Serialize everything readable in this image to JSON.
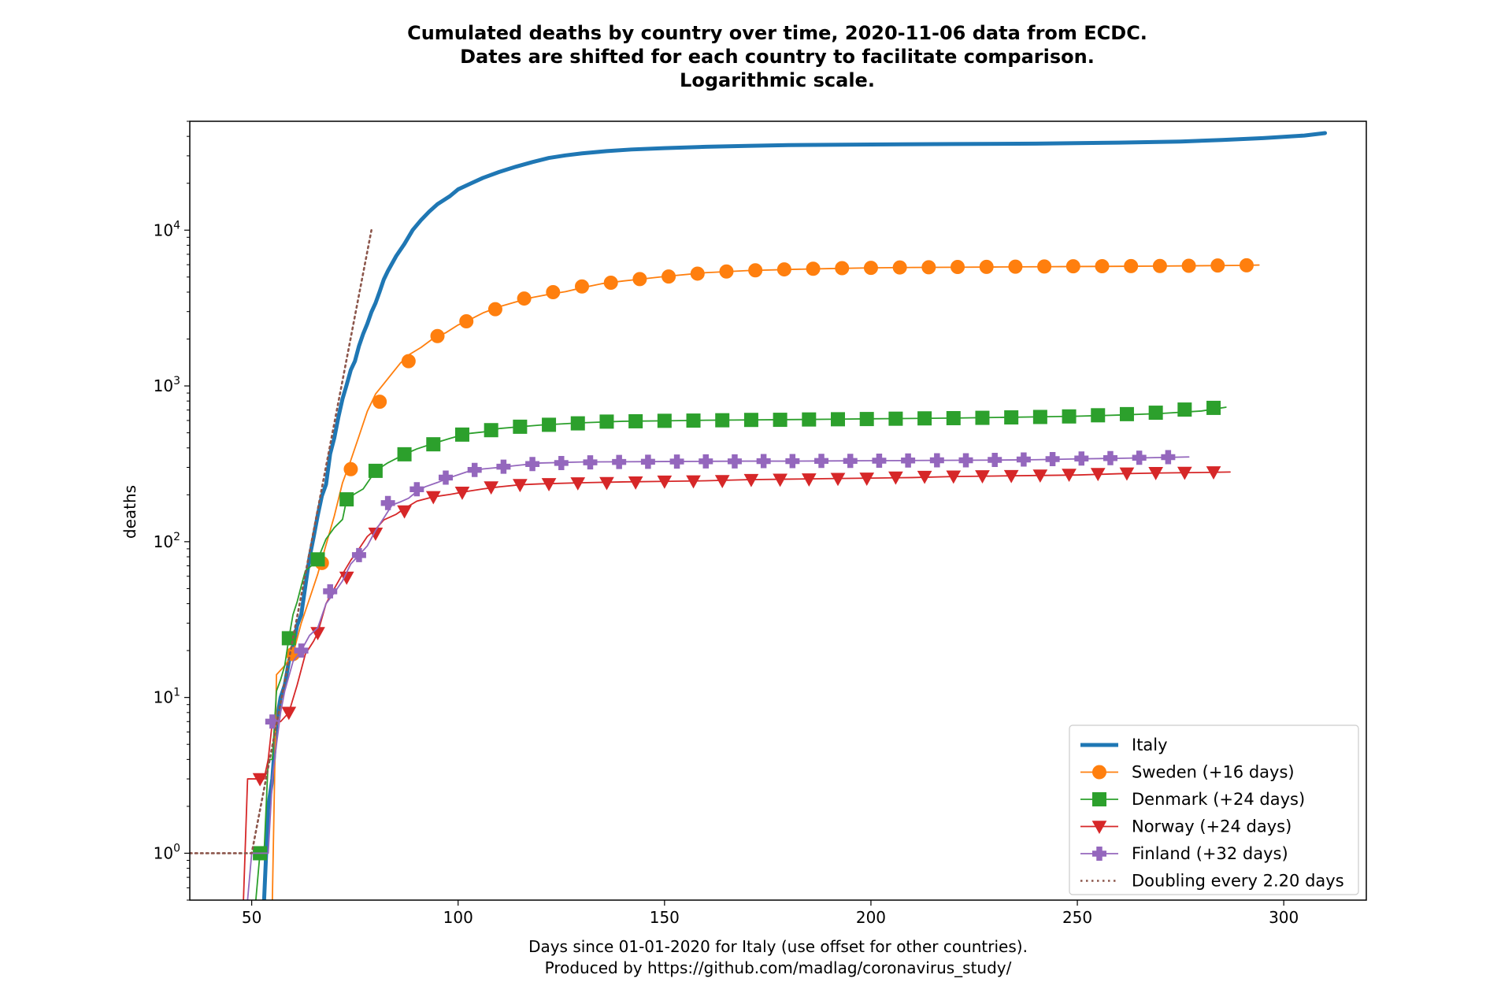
{
  "chart_data": {
    "type": "line",
    "title_lines": [
      "Cumulated deaths by country over time, 2020-11-06 data from ECDC.",
      "Dates are shifted for each country to facilitate comparison.",
      "Logarithmic scale."
    ],
    "xlabel_lines": [
      "Days since 01-01-2020 for Italy (use offset for other countries).",
      "Produced by https://github.com/madlag/coronavirus_study/"
    ],
    "ylabel": "deaths",
    "y_scale": "log",
    "xlim": [
      35,
      320
    ],
    "ylim": [
      0.5,
      50000
    ],
    "x_ticks": [
      50,
      100,
      150,
      200,
      250,
      300
    ],
    "y_ticks": [
      {
        "value": 1,
        "base": "10",
        "exp": "0"
      },
      {
        "value": 10,
        "base": "10",
        "exp": "1"
      },
      {
        "value": 100,
        "base": "10",
        "exp": "2"
      },
      {
        "value": 1000,
        "base": "10",
        "exp": "3"
      },
      {
        "value": 10000,
        "base": "10",
        "exp": "4"
      }
    ],
    "legend_position": "lower right",
    "series": [
      {
        "name": "Italy",
        "color": "#1f77b4",
        "marker": "none",
        "linewidth": "thick",
        "x": [
          53,
          54,
          55,
          56,
          57,
          58,
          59,
          60,
          61,
          62,
          63,
          64,
          65,
          66,
          67,
          68,
          69,
          70,
          71,
          72,
          73,
          74,
          75,
          76,
          77,
          78,
          79,
          80,
          81,
          82,
          83,
          85,
          87,
          89,
          91,
          93,
          95,
          98,
          100,
          103,
          106,
          110,
          114,
          118,
          122,
          126,
          130,
          136,
          142,
          150,
          160,
          170,
          180,
          200,
          220,
          240,
          260,
          275,
          285,
          295,
          305,
          310
        ],
        "y": [
          0.5,
          2,
          3,
          7,
          10,
          12,
          17,
          21,
          29,
          34,
          52,
          79,
          107,
          148,
          197,
          233,
          366,
          463,
          631,
          827,
          1016,
          1266,
          1441,
          1809,
          2158,
          2503,
          2978,
          3405,
          4032,
          4825,
          5476,
          6820,
          8165,
          10023,
          11591,
          13155,
          14681,
          16523,
          18279,
          19899,
          21645,
          23660,
          25549,
          27359,
          29079,
          30201,
          31106,
          32169,
          32955,
          33601,
          34301,
          34767,
          35141,
          35473,
          35738,
          35941,
          36474,
          37059,
          37905,
          39000,
          40500,
          42000
        ]
      },
      {
        "name": "Sweden (+16 days)",
        "color": "#ff7f0e",
        "marker": "circle",
        "linewidth": "thin",
        "x": [
          55,
          56,
          58,
          60,
          62,
          64,
          66,
          67,
          70,
          72,
          74,
          76,
          78,
          80,
          82,
          84,
          86,
          88,
          91,
          94,
          97,
          100,
          103,
          106,
          110,
          114,
          118,
          122,
          126,
          130,
          135,
          140,
          145,
          150,
          160,
          170,
          180,
          190,
          200,
          210,
          220,
          230,
          240,
          250,
          260,
          270,
          280,
          290,
          294
        ],
        "y": [
          0.5,
          14,
          16,
          19,
          30,
          43,
          62,
          77,
          146,
          239,
          333,
          477,
          687,
          887,
          1033,
          1203,
          1400,
          1580,
          1765,
          2021,
          2194,
          2462,
          2679,
          2941,
          3225,
          3460,
          3698,
          3871,
          4029,
          4266,
          4542,
          4717,
          4874,
          5041,
          5333,
          5500,
          5593,
          5667,
          5730,
          5763,
          5780,
          5800,
          5820,
          5840,
          5860,
          5880,
          5910,
          5938,
          5969
        ],
        "marker_x": [
          60,
          67,
          74,
          81,
          88,
          95,
          102,
          109,
          116,
          123,
          130,
          137,
          144,
          151,
          158,
          165,
          172,
          179,
          186,
          193,
          200,
          207,
          214,
          221,
          228,
          235,
          242,
          249,
          256,
          263,
          270,
          277,
          284,
          291
        ],
        "marker_y": [
          19,
          73,
          292,
          792,
          1441,
          2090,
          2600,
          3110,
          3640,
          4000,
          4350,
          4600,
          4850,
          5040,
          5260,
          5430,
          5520,
          5600,
          5650,
          5700,
          5730,
          5760,
          5780,
          5800,
          5815,
          5830,
          5845,
          5860,
          5870,
          5880,
          5890,
          5905,
          5930,
          5950
        ]
      },
      {
        "name": "Denmark (+24 days)",
        "color": "#2ca02c",
        "marker": "square",
        "linewidth": "thin",
        "x": [
          51,
          52,
          53,
          54,
          55,
          56,
          57,
          58,
          59,
          60,
          61,
          62,
          63,
          65,
          66,
          68,
          70,
          72,
          73,
          75,
          77,
          80,
          83,
          87,
          90,
          94,
          98,
          102,
          106,
          110,
          115,
          120,
          130,
          140,
          150,
          160,
          170,
          180,
          190,
          200,
          210,
          220,
          230,
          240,
          250,
          260,
          270,
          280,
          286
        ],
        "y": [
          0.5,
          1,
          1,
          4,
          4,
          11,
          13,
          16,
          24,
          34,
          41,
          52,
          65,
          72,
          77,
          104,
          123,
          139,
          187,
          203,
          218,
          285,
          321,
          364,
          394,
          427,
          460,
          493,
          506,
          533,
          547,
          561,
          580,
          593,
          597,
          602,
          605,
          608,
          611,
          615,
          618,
          622,
          627,
          633,
          639,
          650,
          665,
          690,
          730
        ],
        "marker_x": [
          52,
          59,
          66,
          73,
          80,
          87,
          94,
          101,
          108,
          115,
          122,
          129,
          136,
          143,
          150,
          157,
          164,
          171,
          178,
          185,
          192,
          199,
          206,
          213,
          220,
          227,
          234,
          241,
          248,
          255,
          262,
          269,
          276,
          283
        ],
        "marker_y": [
          1,
          24,
          77,
          187,
          285,
          364,
          422,
          487,
          520,
          547,
          563,
          575,
          590,
          593,
          597,
          599,
          602,
          605,
          606,
          609,
          611,
          613,
          616,
          619,
          621,
          624,
          628,
          632,
          637,
          648,
          659,
          673,
          705,
          723
        ]
      },
      {
        "name": "Norway (+24 days)",
        "color": "#d62728",
        "marker": "triangle_down",
        "linewidth": "thin",
        "x": [
          48,
          49,
          52,
          53,
          54,
          55,
          57,
          59,
          61,
          63,
          65,
          66,
          68,
          70,
          72,
          74,
          76,
          78,
          80,
          82,
          85,
          87,
          90,
          94,
          98,
          102,
          106,
          110,
          115,
          120,
          130,
          140,
          150,
          160,
          170,
          180,
          190,
          200,
          210,
          220,
          230,
          240,
          250,
          260,
          270,
          280,
          287
        ],
        "y": [
          0.5,
          3,
          3,
          3,
          4,
          7,
          7,
          8,
          12,
          19,
          23,
          26,
          40,
          50,
          62,
          76,
          90,
          108,
          120,
          138,
          150,
          163,
          182,
          194,
          201,
          210,
          218,
          225,
          232,
          235,
          239,
          242,
          244,
          246,
          250,
          252,
          254,
          256,
          258,
          262,
          264,
          266,
          268,
          273,
          276,
          278,
          280
        ],
        "marker_x": [
          52,
          59,
          66,
          73,
          80,
          87,
          94,
          101,
          108,
          115,
          122,
          129,
          136,
          143,
          150,
          157,
          164,
          171,
          178,
          185,
          192,
          199,
          206,
          213,
          220,
          227,
          234,
          241,
          248,
          255,
          262,
          269,
          276,
          283
        ],
        "marker_y": [
          3,
          8,
          26,
          59,
          113,
          157,
          194,
          207,
          224,
          232,
          235,
          238,
          239,
          241,
          244,
          245,
          246,
          250,
          251,
          252,
          254,
          255,
          259,
          262,
          263,
          264,
          265,
          267,
          270,
          273,
          275,
          277,
          278,
          280
        ]
      },
      {
        "name": "Finland (+32 days)",
        "color": "#9467bd",
        "marker": "plus_filled",
        "linewidth": "thin",
        "x": [
          49,
          50,
          51,
          52,
          53,
          54,
          55,
          56,
          57,
          58,
          60,
          62,
          64,
          66,
          68,
          70,
          72,
          74,
          76,
          78,
          80,
          82,
          84,
          86,
          88,
          90,
          92,
          95,
          98,
          102,
          106,
          110,
          115,
          120,
          130,
          140,
          150,
          160,
          170,
          180,
          190,
          200,
          210,
          220,
          230,
          240,
          250,
          260,
          270,
          277
        ],
        "y": [
          0.5,
          1,
          1,
          1,
          1,
          1,
          3,
          5,
          8,
          11,
          17,
          20,
          25,
          28,
          40,
          47,
          56,
          72,
          82,
          94,
          118,
          142,
          172,
          180,
          190,
          210,
          225,
          240,
          258,
          280,
          293,
          300,
          310,
          320,
          325,
          326,
          327,
          328,
          329,
          329,
          330,
          331,
          332,
          333,
          334,
          336,
          340,
          343,
          347,
          350
        ],
        "marker_x": [
          55,
          62,
          69,
          76,
          83,
          90,
          97,
          104,
          111,
          118,
          125,
          132,
          139,
          146,
          153,
          160,
          167,
          174,
          181,
          188,
          195,
          202,
          209,
          216,
          223,
          230,
          237,
          244,
          251,
          258,
          265,
          272
        ],
        "marker_y": [
          7,
          20,
          48,
          82,
          177,
          217,
          258,
          289,
          303,
          315,
          320,
          323,
          325,
          326,
          327,
          328,
          328,
          329,
          329,
          330,
          330,
          331,
          332,
          333,
          333,
          335,
          337,
          339,
          342,
          344,
          346,
          349
        ]
      },
      {
        "name": "Doubling every 2.20 days",
        "color": "#8c564b",
        "marker": "none",
        "linewidth": "dotted",
        "x": [
          35,
          50,
          79
        ],
        "y": [
          1,
          1,
          10000
        ]
      }
    ]
  }
}
